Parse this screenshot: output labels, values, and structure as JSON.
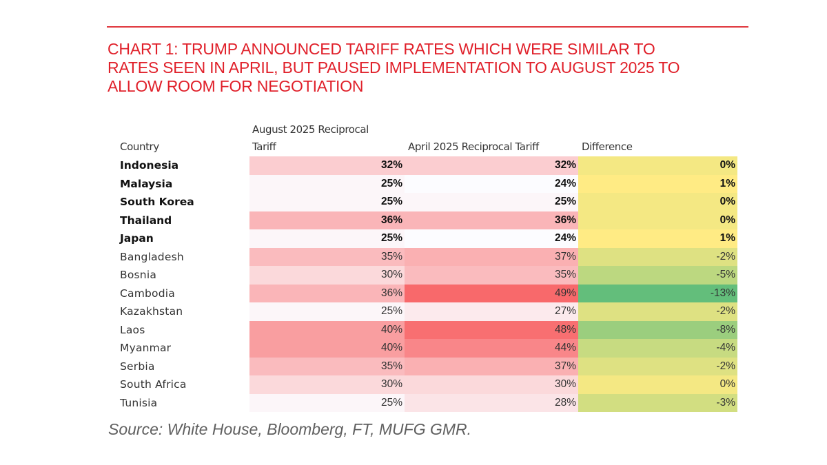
{
  "title": "CHART 1: TRUMP ANNOUNCED TARIFF RATES WHICH WERE SIMILAR TO RATES SEEN IN APRIL, BUT PAUSED IMPLEMENTATION TO AUGUST 2025 TO ALLOW ROOM FOR NEGOTIATION",
  "title_lines": [
    "CHART 1: TRUMP ANNOUNCED TARIFF RATES WHICH WERE SIMILAR TO",
    "RATES SEEN IN APRIL, BUT PAUSED IMPLEMENTATION TO AUGUST 2025 TO",
    "ALLOW ROOM FOR NEGOTIATION"
  ],
  "source": "Source: White House, Bloomberg, FT, MUFG GMR.",
  "colors": {
    "title": "#e0202a",
    "rule": "#e0383e",
    "red_max": "#f8696b",
    "red_min": "#fcfcff",
    "green_max": "#63be7b",
    "yellow_mid": "#ffeb84"
  },
  "chart_data": {
    "type": "table",
    "title": "CHART 1: TRUMP ANNOUNCED TARIFF RATES WHICH WERE SIMILAR TO RATES SEEN IN APRIL, BUT PAUSED IMPLEMENTATION TO AUGUST 2025 TO ALLOW ROOM FOR NEGOTIATION",
    "columns": {
      "country": "Country",
      "august_line1": "August 2025 Reciprocal",
      "august_line2": "Tariff",
      "april": "April 2025 Reciprocal Tariff",
      "difference": "Difference"
    },
    "rows": [
      {
        "country": "Indonesia",
        "august": 32,
        "april": 32,
        "difference": 0,
        "bold": true
      },
      {
        "country": "Malaysia",
        "august": 25,
        "april": 24,
        "difference": 1,
        "bold": true
      },
      {
        "country": "South Korea",
        "august": 25,
        "april": 25,
        "difference": 0,
        "bold": true
      },
      {
        "country": "Thailand",
        "august": 36,
        "april": 36,
        "difference": 0,
        "bold": true
      },
      {
        "country": "Japan",
        "august": 25,
        "april": 24,
        "difference": 1,
        "bold": true
      },
      {
        "country": "Bangladesh",
        "august": 35,
        "april": 37,
        "difference": -2,
        "bold": false
      },
      {
        "country": "Bosnia",
        "august": 30,
        "april": 35,
        "difference": -5,
        "bold": false
      },
      {
        "country": "Cambodia",
        "august": 36,
        "april": 49,
        "difference": -13,
        "bold": false
      },
      {
        "country": "Kazakhstan",
        "august": 25,
        "april": 27,
        "difference": -2,
        "bold": false
      },
      {
        "country": "Laos",
        "august": 40,
        "april": 48,
        "difference": -8,
        "bold": false
      },
      {
        "country": "Myanmar",
        "august": 40,
        "april": 44,
        "difference": -4,
        "bold": false
      },
      {
        "country": "Serbia",
        "august": 35,
        "april": 37,
        "difference": -2,
        "bold": false
      },
      {
        "country": "South Africa",
        "august": 30,
        "april": 30,
        "difference": 0,
        "bold": false
      },
      {
        "country": "Tunisia",
        "august": 25,
        "april": 28,
        "difference": -3,
        "bold": false
      }
    ],
    "unit": "%",
    "source": "Source: White House, Bloomberg, FT, MUFG GMR."
  }
}
